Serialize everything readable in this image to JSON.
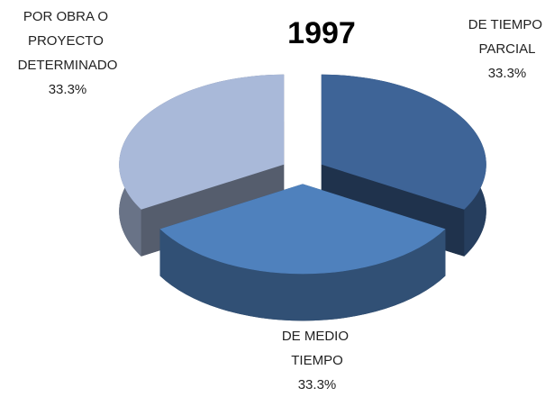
{
  "chart_data": {
    "type": "pie3d",
    "title": "1997",
    "categories": [
      "DE TIEMPO PARCIAL",
      "DE MEDIO TIEMPO",
      "POR OBRA O PROYECTO DETERMINADO"
    ],
    "values": [
      33.3,
      33.3,
      33.3
    ],
    "value_labels": [
      "33.3%",
      "33.3%",
      "33.3%"
    ],
    "colors": [
      "#3e6497",
      "#4f81bd",
      "#a9b9d9"
    ]
  }
}
